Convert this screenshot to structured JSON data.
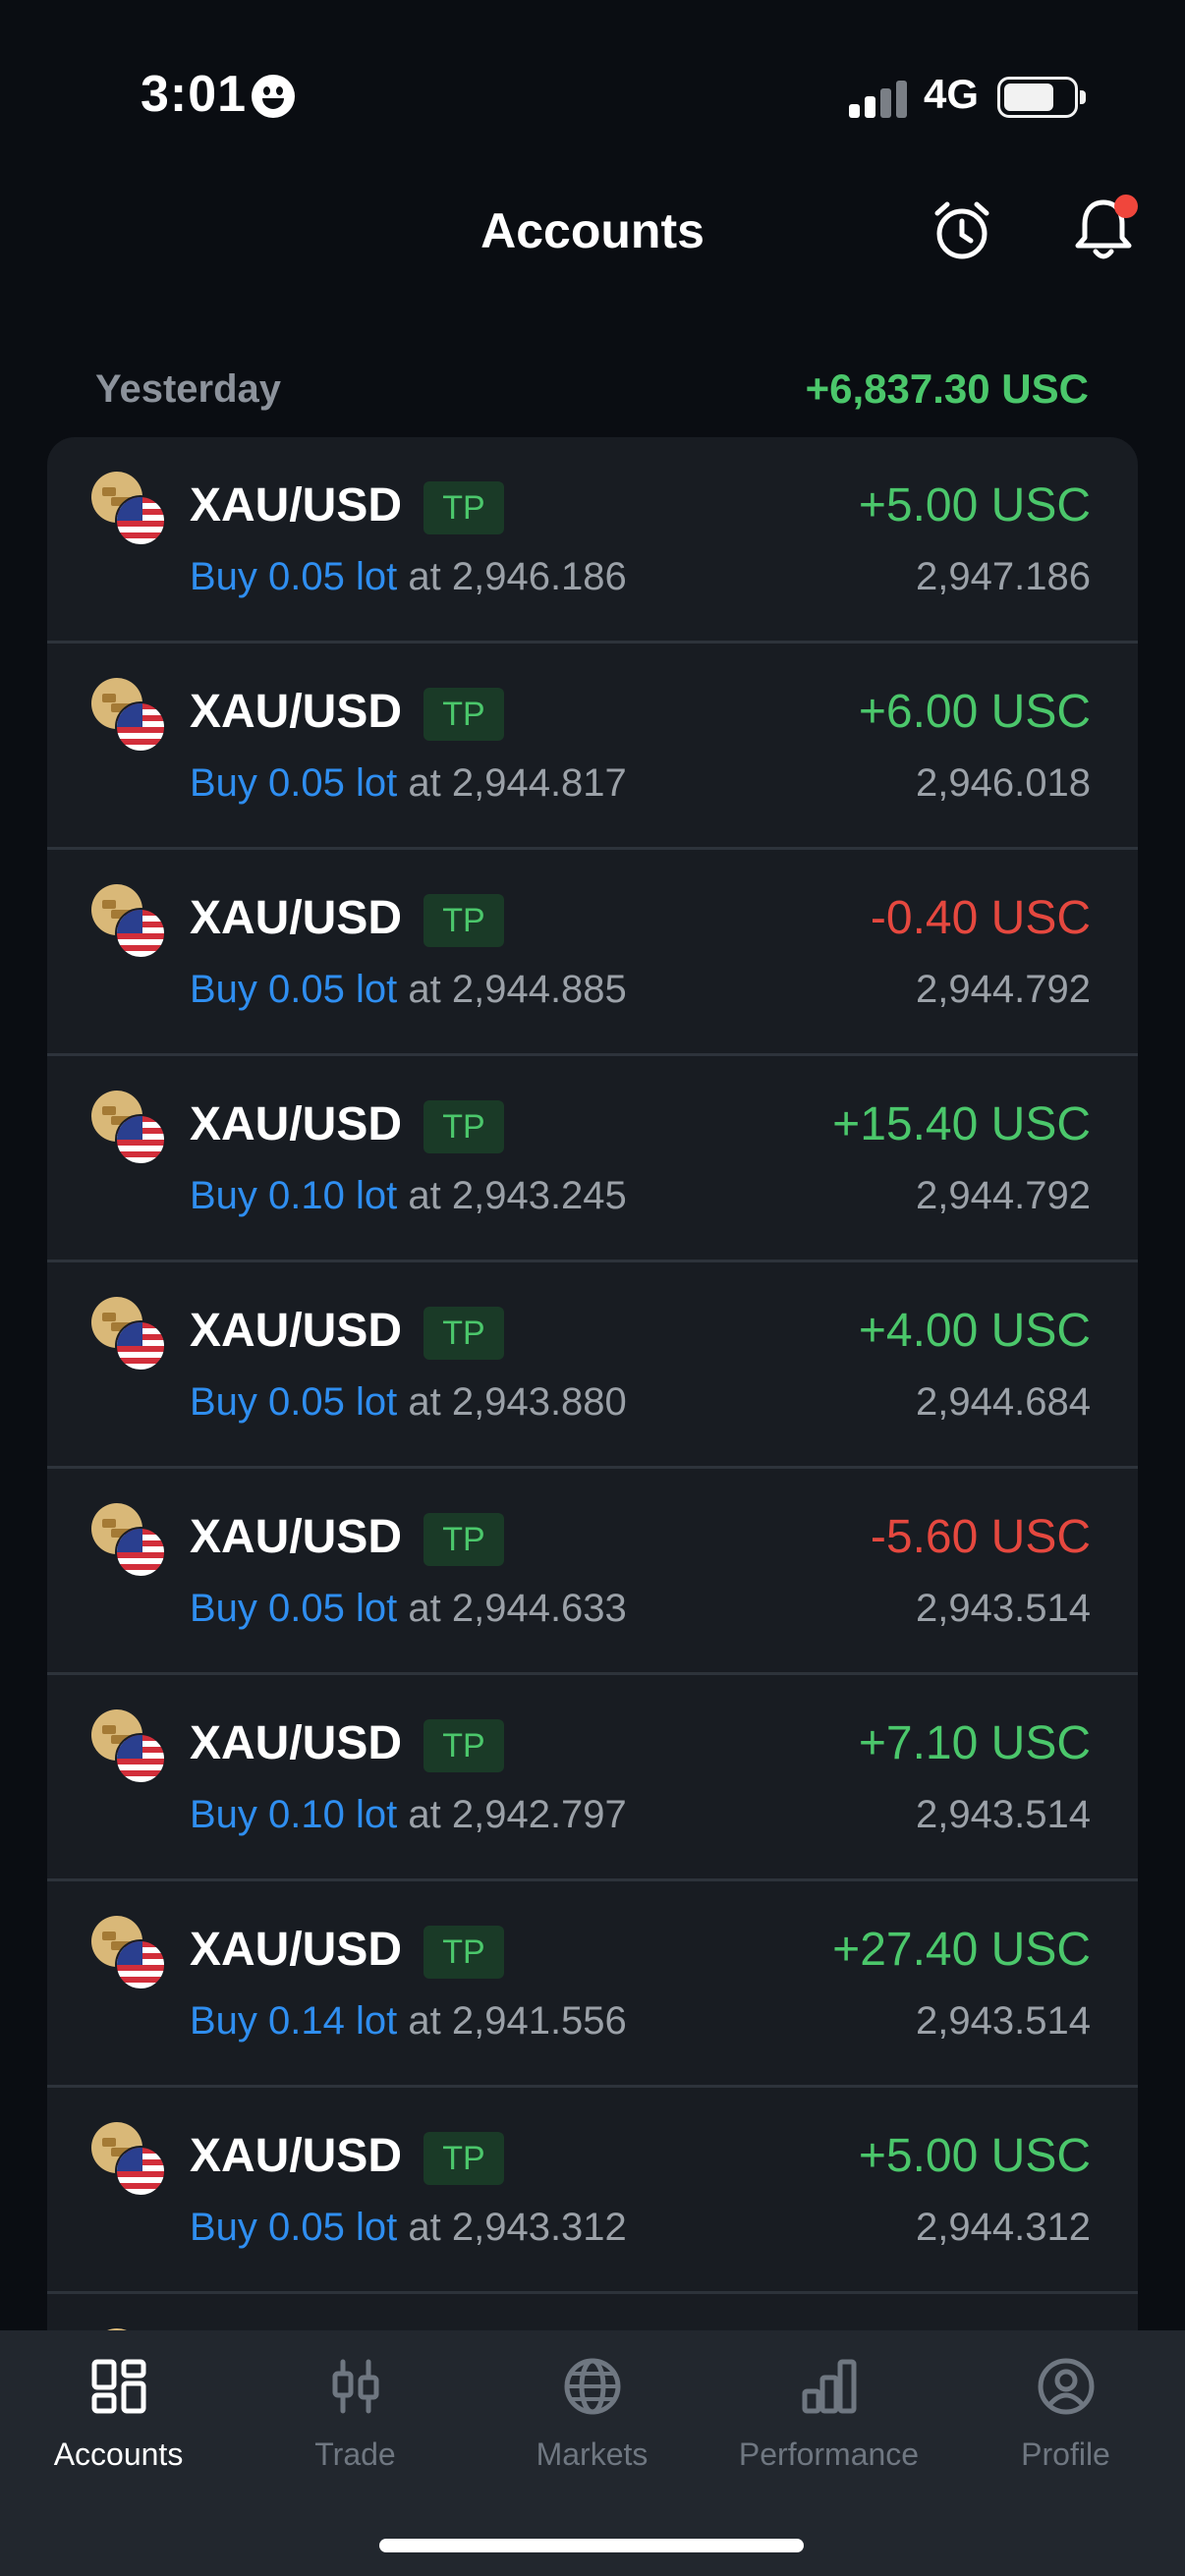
{
  "status": {
    "time": "3:01",
    "network": "4G"
  },
  "header": {
    "title": "Accounts"
  },
  "group": {
    "label": "Yesterday",
    "total": "+6,837.30 USC",
    "total_color": "#4bc76b"
  },
  "trades": [
    {
      "symbol": "XAU/USD",
      "badge": "TP",
      "lot": "Buy 0.05 lot",
      "open": "at 2,946.186",
      "pnl": "+5.00 USC",
      "close": "2,947.186",
      "sign": "pos"
    },
    {
      "symbol": "XAU/USD",
      "badge": "TP",
      "lot": "Buy 0.05 lot",
      "open": "at 2,944.817",
      "pnl": "+6.00 USC",
      "close": "2,946.018",
      "sign": "pos"
    },
    {
      "symbol": "XAU/USD",
      "badge": "TP",
      "lot": "Buy 0.05 lot",
      "open": "at 2,944.885",
      "pnl": "-0.40 USC",
      "close": "2,944.792",
      "sign": "neg"
    },
    {
      "symbol": "XAU/USD",
      "badge": "TP",
      "lot": "Buy 0.10 lot",
      "open": "at 2,943.245",
      "pnl": "+15.40 USC",
      "close": "2,944.792",
      "sign": "pos"
    },
    {
      "symbol": "XAU/USD",
      "badge": "TP",
      "lot": "Buy 0.05 lot",
      "open": "at 2,943.880",
      "pnl": "+4.00 USC",
      "close": "2,944.684",
      "sign": "pos"
    },
    {
      "symbol": "XAU/USD",
      "badge": "TP",
      "lot": "Buy 0.05 lot",
      "open": "at 2,944.633",
      "pnl": "-5.60 USC",
      "close": "2,943.514",
      "sign": "neg"
    },
    {
      "symbol": "XAU/USD",
      "badge": "TP",
      "lot": "Buy 0.10 lot",
      "open": "at 2,942.797",
      "pnl": "+7.10 USC",
      "close": "2,943.514",
      "sign": "pos"
    },
    {
      "symbol": "XAU/USD",
      "badge": "TP",
      "lot": "Buy 0.14 lot",
      "open": "at 2,941.556",
      "pnl": "+27.40 USC",
      "close": "2,943.514",
      "sign": "pos"
    },
    {
      "symbol": "XAU/USD",
      "badge": "TP",
      "lot": "Buy 0.05 lot",
      "open": "at 2,943.312",
      "pnl": "+5.00 USC",
      "close": "2,944.312",
      "sign": "pos"
    }
  ],
  "nav": {
    "items": [
      {
        "label": "Accounts",
        "icon": "grid-icon",
        "active": true
      },
      {
        "label": "Trade",
        "icon": "candlestick-icon",
        "active": false
      },
      {
        "label": "Markets",
        "icon": "globe-icon",
        "active": false
      },
      {
        "label": "Performance",
        "icon": "bar-chart-icon",
        "active": false
      },
      {
        "label": "Profile",
        "icon": "user-circle-icon",
        "active": false
      }
    ]
  },
  "colors": {
    "positive": "#4bc76b",
    "negative": "#e5483f",
    "link": "#2f8ef0",
    "background": "#0a0d12",
    "card": "#181c22"
  }
}
